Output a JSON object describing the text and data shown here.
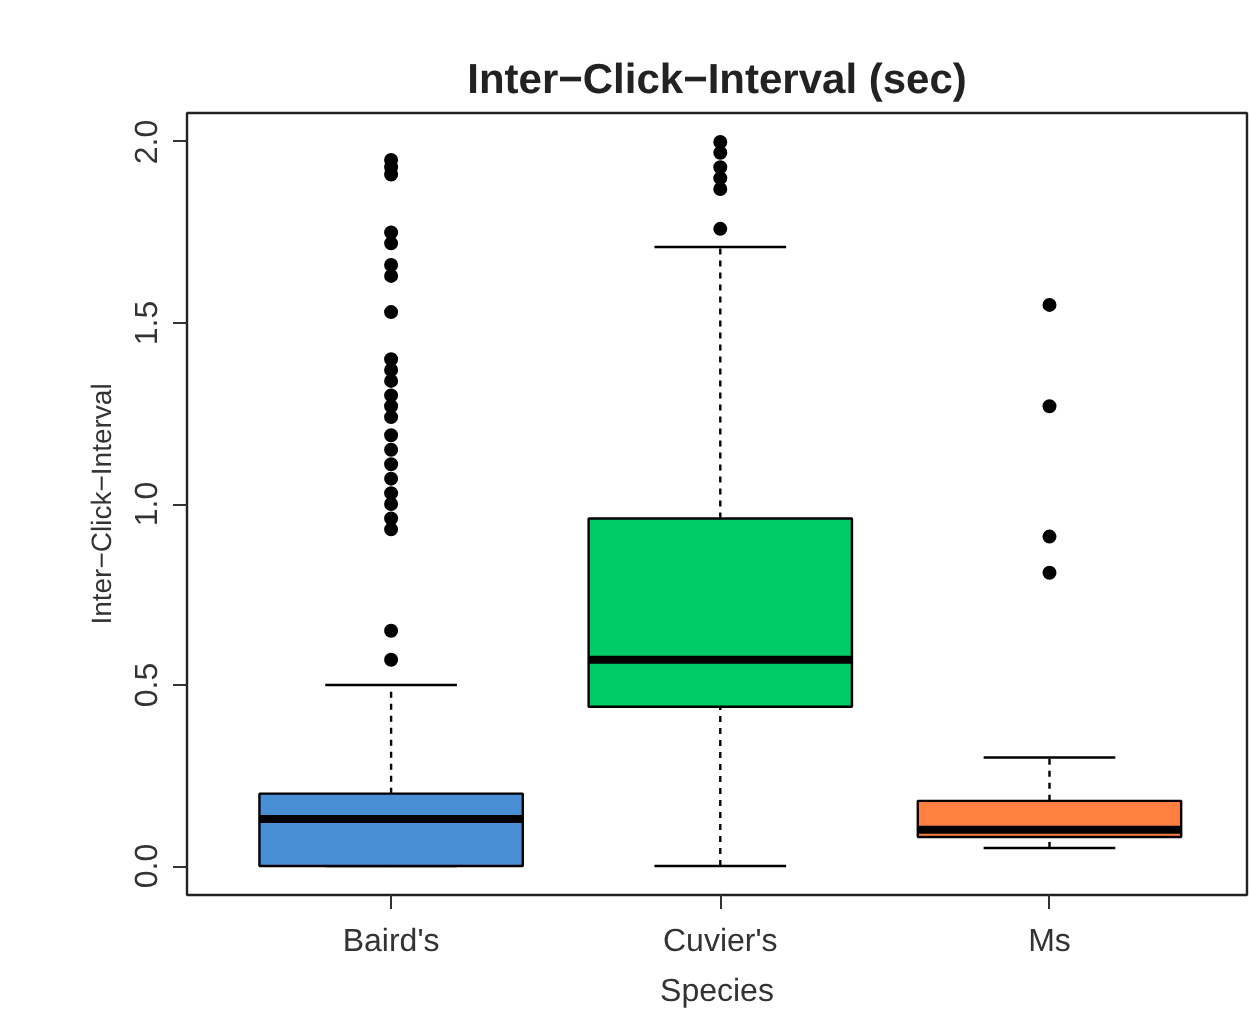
{
  "chart_data": {
    "type": "box",
    "title": "Inter−Click−Interval (sec)",
    "xlabel": "Species",
    "ylabel": "Inter−Click−Interval",
    "categories": [
      "Baird's",
      "Cuvier's",
      "Ms"
    ],
    "colors": [
      "#4a8fd6",
      "#00cc66",
      "#ff8040"
    ],
    "boxes": [
      {
        "low": 0.0,
        "q1": 0.0,
        "median": 0.13,
        "q3": 0.2,
        "high": 0.5,
        "outliers": [
          1.95,
          1.93,
          1.91,
          1.75,
          1.72,
          1.66,
          1.63,
          1.53,
          1.4,
          1.37,
          1.34,
          1.3,
          1.27,
          1.24,
          1.19,
          1.15,
          1.11,
          1.07,
          1.03,
          1.0,
          0.96,
          0.93,
          0.65,
          0.57
        ]
      },
      {
        "low": 0.0,
        "q1": 0.44,
        "median": 0.57,
        "q3": 0.96,
        "high": 1.71,
        "outliers": [
          2.0,
          1.97,
          1.93,
          1.9,
          1.87,
          1.76
        ]
      },
      {
        "low": 0.05,
        "q1": 0.08,
        "median": 0.1,
        "q3": 0.18,
        "high": 0.3,
        "outliers": [
          1.55,
          1.27,
          0.91,
          0.81
        ]
      }
    ],
    "ylim": [
      -0.08,
      2.08
    ],
    "yticks": [
      {
        "value": 0,
        "label": "0.0"
      },
      0.5,
      {
        "value": 1,
        "label": "1.0"
      },
      1.5,
      {
        "value": 2,
        "label": "2.0"
      }
    ]
  }
}
